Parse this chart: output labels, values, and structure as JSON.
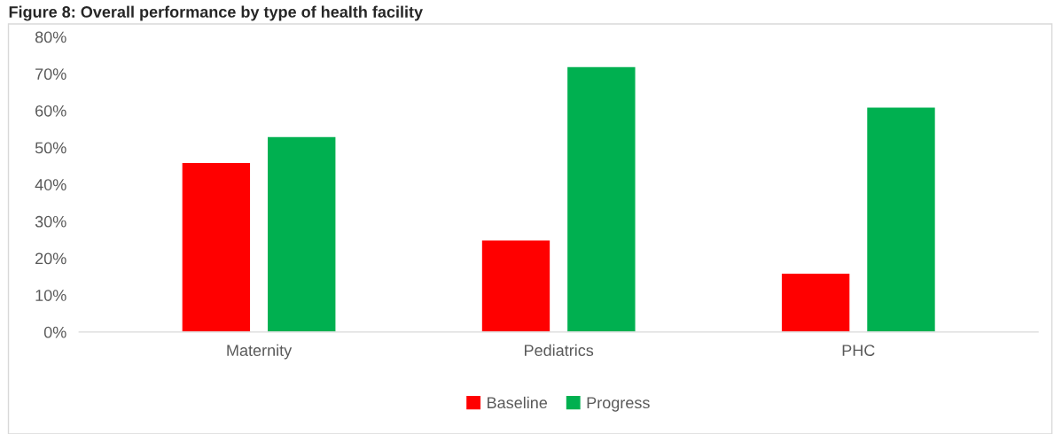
{
  "chart_data": {
    "type": "bar",
    "title": "Figure 8: Overall performance by type of health facility",
    "categories": [
      "Maternity",
      "Pediatrics",
      "PHC"
    ],
    "series": [
      {
        "name": "Baseline",
        "color": "#ff0000",
        "values": [
          46,
          25,
          16
        ]
      },
      {
        "name": "Progress",
        "color": "#00b050",
        "values": [
          53,
          72,
          61
        ]
      }
    ],
    "ylim": [
      0,
      80
    ],
    "yticks": [
      {
        "value": 0,
        "label": "0%"
      },
      {
        "value": 10,
        "label": "10%"
      },
      {
        "value": 20,
        "label": "20%"
      },
      {
        "value": 30,
        "label": "30%"
      },
      {
        "value": 40,
        "label": "40%"
      },
      {
        "value": 50,
        "label": "50%"
      },
      {
        "value": 60,
        "label": "60%"
      },
      {
        "value": 70,
        "label": "70%"
      },
      {
        "value": 80,
        "label": "80%"
      }
    ],
    "legend": "bottom"
  }
}
